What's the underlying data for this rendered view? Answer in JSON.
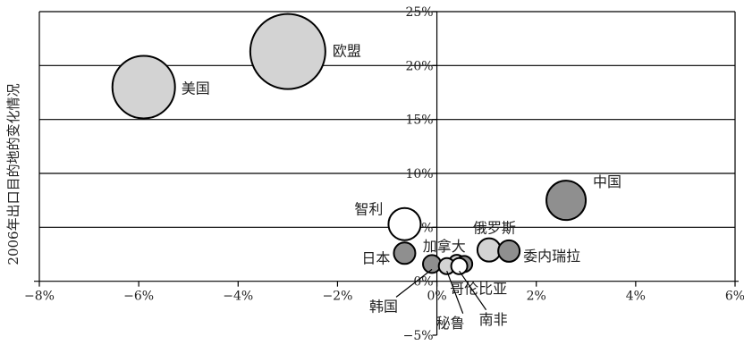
{
  "chart_data": {
    "type": "scatter",
    "subtype": "bubble",
    "title": "",
    "xlabel": "",
    "ylabel": "2006年出口目的地的变化情况",
    "xlim": [
      -8,
      6
    ],
    "ylim": [
      -5,
      25
    ],
    "x_ticks": [
      "−8%",
      "−6%",
      "−4%",
      "−2%",
      "0%",
      "2%",
      "4%",
      "6%"
    ],
    "y_ticks": [
      "−5%",
      "0%",
      "5%",
      "10%",
      "15%",
      "20%",
      "25%"
    ],
    "grid": "horizontal",
    "colors": {
      "light": "#d3d3d3",
      "dark": "#8f8f8f",
      "white": "#ffffff",
      "stroke": "#000000"
    },
    "points": [
      {
        "label": "欧盟",
        "x": -3.0,
        "y": 21.3,
        "size": 42,
        "fill": "light"
      },
      {
        "label": "美国",
        "x": -5.9,
        "y": 18.0,
        "size": 35,
        "fill": "light"
      },
      {
        "label": "中国",
        "x": 2.6,
        "y": 7.5,
        "size": 22,
        "fill": "dark"
      },
      {
        "label": "智利",
        "x": -0.65,
        "y": 5.3,
        "size": 18,
        "fill": "white"
      },
      {
        "label": "日本",
        "x": -0.65,
        "y": 2.6,
        "size": 12,
        "fill": "dark"
      },
      {
        "label": "俄罗斯",
        "x": 1.05,
        "y": 2.9,
        "size": 13,
        "fill": "light"
      },
      {
        "label": "委内瑞拉",
        "x": 1.45,
        "y": 2.8,
        "size": 12,
        "fill": "dark"
      },
      {
        "label": "加拿大",
        "x": 0.4,
        "y": 1.7,
        "size": 9,
        "fill": "light"
      },
      {
        "label": "哥伦比亚",
        "x": 0.55,
        "y": 1.6,
        "size": 9,
        "fill": "dark"
      },
      {
        "label": "韩国",
        "x": -0.1,
        "y": 1.6,
        "size": 10,
        "fill": "dark"
      },
      {
        "label": "秘鲁",
        "x": 0.2,
        "y": 1.4,
        "size": 9,
        "fill": "light"
      },
      {
        "label": "南非",
        "x": 0.45,
        "y": 1.4,
        "size": 9,
        "fill": "white"
      }
    ]
  }
}
